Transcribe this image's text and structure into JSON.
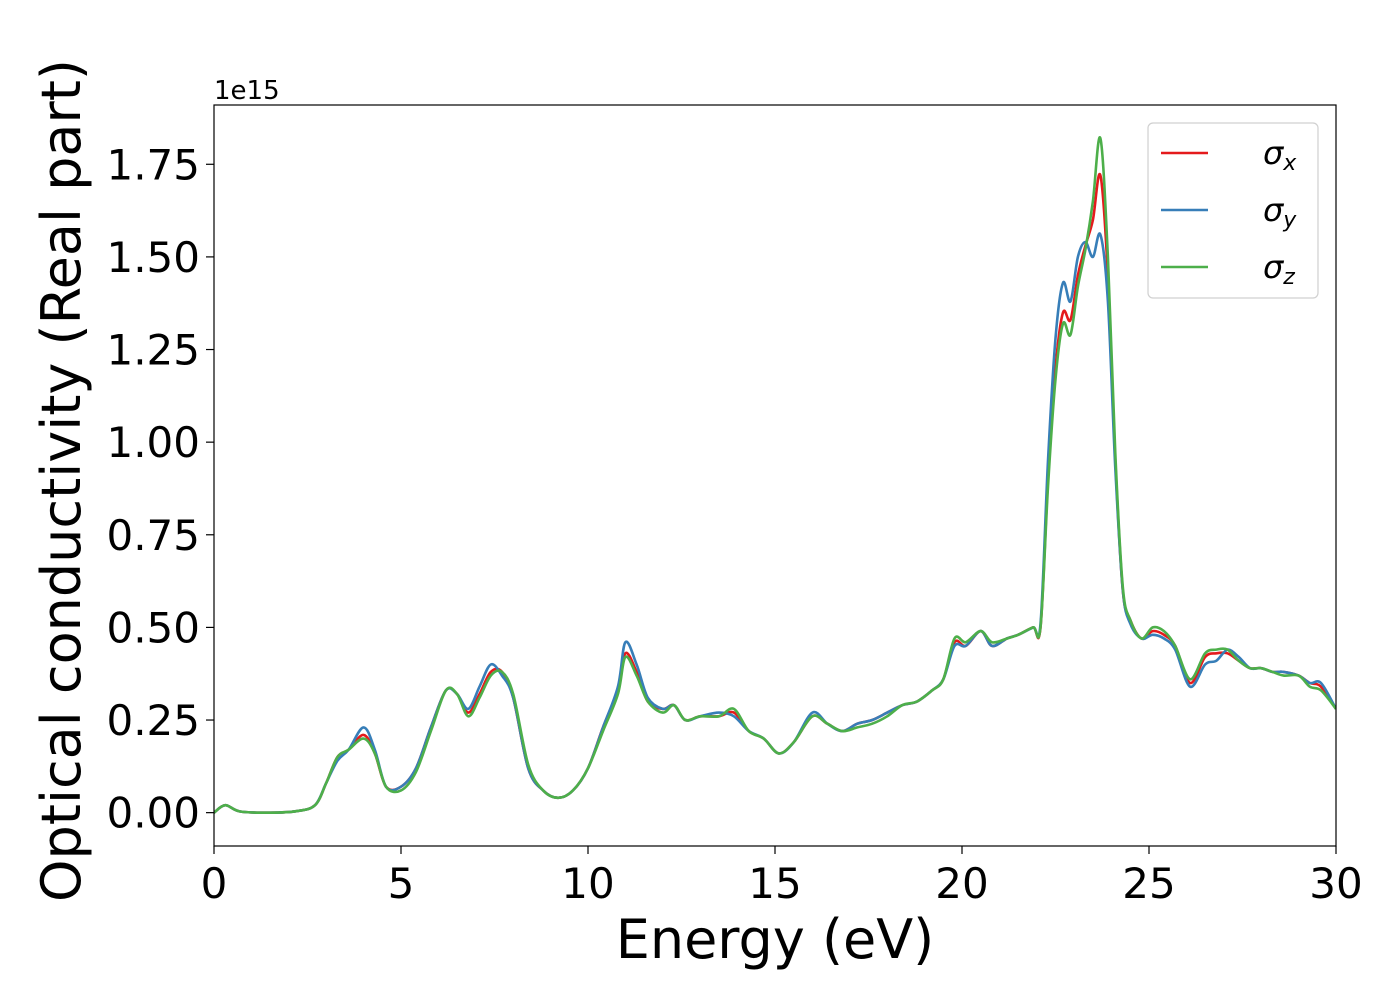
{
  "chart_data": {
    "type": "line",
    "xlabel": "Energy (eV)",
    "ylabel": "Optical conductivity (Real part)",
    "y_offset_text": "1e15",
    "xlim": [
      0,
      30
    ],
    "ylim": [
      -0.09,
      1.91
    ],
    "x_ticks": [
      0,
      5,
      10,
      15,
      20,
      25,
      30
    ],
    "x_tick_labels": [
      "0",
      "5",
      "10",
      "15",
      "20",
      "25",
      "30"
    ],
    "y_ticks": [
      0.0,
      0.25,
      0.5,
      0.75,
      1.0,
      1.25,
      1.5,
      1.75
    ],
    "y_tick_labels": [
      "0.00",
      "0.25",
      "0.50",
      "0.75",
      "1.00",
      "1.25",
      "1.50",
      "1.75"
    ],
    "grid": false,
    "legend_position": "top-right",
    "x": [
      0,
      0.3,
      0.7,
      1.5,
      2.2,
      2.7,
      3.0,
      3.3,
      3.6,
      4.0,
      4.3,
      4.6,
      5.0,
      5.4,
      5.8,
      6.2,
      6.5,
      6.8,
      7.1,
      7.4,
      7.7,
      8.0,
      8.4,
      8.8,
      9.2,
      9.6,
      10.0,
      10.4,
      10.8,
      11.0,
      11.3,
      11.6,
      12.0,
      12.3,
      12.6,
      13.0,
      13.5,
      13.9,
      14.3,
      14.7,
      15.1,
      15.5,
      16.0,
      16.4,
      16.8,
      17.2,
      17.6,
      18.0,
      18.4,
      18.8,
      19.2,
      19.5,
      19.8,
      20.1,
      20.5,
      20.8,
      21.2,
      21.5,
      21.9,
      22.1,
      22.3,
      22.5,
      22.7,
      22.9,
      23.1,
      23.3,
      23.5,
      23.7,
      23.9,
      24.1,
      24.3,
      24.5,
      24.8,
      25.1,
      25.4,
      25.7,
      26.1,
      26.5,
      26.8,
      27.1,
      27.4,
      27.7,
      28.0,
      28.3,
      28.6,
      29.0,
      29.3,
      29.6,
      30.0
    ],
    "series": [
      {
        "name": "σx",
        "color": "#e41a1c",
        "values": [
          0.0,
          0.02,
          0.003,
          0.0,
          0.004,
          0.02,
          0.08,
          0.15,
          0.17,
          0.21,
          0.16,
          0.07,
          0.07,
          0.12,
          0.23,
          0.33,
          0.32,
          0.27,
          0.32,
          0.38,
          0.38,
          0.31,
          0.12,
          0.06,
          0.04,
          0.06,
          0.12,
          0.23,
          0.33,
          0.43,
          0.38,
          0.3,
          0.28,
          0.29,
          0.25,
          0.26,
          0.26,
          0.27,
          0.22,
          0.2,
          0.16,
          0.19,
          0.26,
          0.24,
          0.22,
          0.24,
          0.25,
          0.27,
          0.29,
          0.3,
          0.33,
          0.36,
          0.46,
          0.45,
          0.49,
          0.45,
          0.47,
          0.48,
          0.5,
          0.5,
          0.9,
          1.2,
          1.35,
          1.33,
          1.45,
          1.53,
          1.6,
          1.72,
          1.45,
          0.95,
          0.6,
          0.52,
          0.47,
          0.49,
          0.48,
          0.45,
          0.35,
          0.42,
          0.43,
          0.43,
          0.41,
          0.39,
          0.39,
          0.38,
          0.38,
          0.37,
          0.35,
          0.34,
          0.28
        ]
      },
      {
        "name": "σy",
        "color": "#377eb8",
        "values": [
          0.0,
          0.02,
          0.003,
          0.0,
          0.004,
          0.02,
          0.08,
          0.14,
          0.17,
          0.23,
          0.17,
          0.07,
          0.07,
          0.12,
          0.23,
          0.33,
          0.32,
          0.28,
          0.34,
          0.4,
          0.37,
          0.31,
          0.12,
          0.06,
          0.04,
          0.06,
          0.12,
          0.23,
          0.34,
          0.46,
          0.4,
          0.31,
          0.28,
          0.29,
          0.25,
          0.26,
          0.27,
          0.26,
          0.22,
          0.2,
          0.16,
          0.19,
          0.27,
          0.24,
          0.22,
          0.24,
          0.25,
          0.27,
          0.29,
          0.3,
          0.33,
          0.36,
          0.45,
          0.45,
          0.49,
          0.45,
          0.47,
          0.48,
          0.5,
          0.51,
          0.95,
          1.28,
          1.43,
          1.38,
          1.5,
          1.54,
          1.5,
          1.56,
          1.38,
          0.93,
          0.6,
          0.51,
          0.47,
          0.48,
          0.47,
          0.44,
          0.34,
          0.4,
          0.41,
          0.44,
          0.42,
          0.39,
          0.39,
          0.38,
          0.38,
          0.37,
          0.35,
          0.35,
          0.28
        ]
      },
      {
        "name": "σz",
        "color": "#4daf4a",
        "values": [
          0.0,
          0.02,
          0.003,
          0.0,
          0.004,
          0.02,
          0.08,
          0.15,
          0.17,
          0.2,
          0.16,
          0.07,
          0.06,
          0.11,
          0.22,
          0.33,
          0.32,
          0.26,
          0.31,
          0.37,
          0.38,
          0.32,
          0.13,
          0.06,
          0.04,
          0.06,
          0.12,
          0.22,
          0.32,
          0.42,
          0.37,
          0.3,
          0.27,
          0.29,
          0.25,
          0.26,
          0.26,
          0.28,
          0.22,
          0.2,
          0.16,
          0.19,
          0.26,
          0.24,
          0.22,
          0.23,
          0.24,
          0.26,
          0.29,
          0.3,
          0.33,
          0.36,
          0.47,
          0.46,
          0.49,
          0.46,
          0.47,
          0.48,
          0.5,
          0.5,
          0.88,
          1.17,
          1.32,
          1.29,
          1.42,
          1.52,
          1.65,
          1.82,
          1.5,
          0.97,
          0.61,
          0.52,
          0.47,
          0.5,
          0.49,
          0.45,
          0.36,
          0.43,
          0.44,
          0.44,
          0.41,
          0.39,
          0.39,
          0.38,
          0.37,
          0.37,
          0.34,
          0.33,
          0.28
        ]
      }
    ]
  }
}
